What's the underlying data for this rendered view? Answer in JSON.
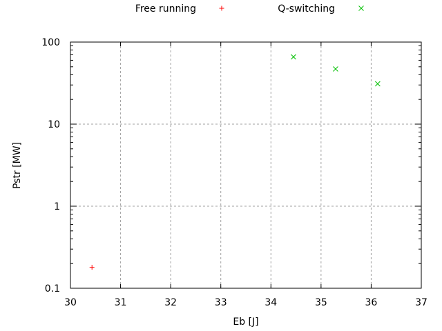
{
  "chart_data": {
    "type": "scatter",
    "title": "",
    "xlabel": "Eb [J]",
    "ylabel": "Pstr [MW]",
    "xlim": [
      30,
      37
    ],
    "ylim": [
      0.1,
      100
    ],
    "yscale": "log",
    "grid": true,
    "legend_position": "top",
    "x_ticks": [
      "30",
      "31",
      "32",
      "33",
      "34",
      "35",
      "36",
      "37"
    ],
    "y_ticks": [
      "0.1",
      "1",
      "10",
      "100"
    ],
    "series": [
      {
        "name": "Free running",
        "marker": "plus",
        "color": "#ff0000",
        "points": [
          {
            "x": 30.43,
            "y": 0.18
          }
        ]
      },
      {
        "name": "Q-switching",
        "marker": "cross",
        "color": "#00c000",
        "points": [
          {
            "x": 34.45,
            "y": 66
          },
          {
            "x": 35.29,
            "y": 47
          },
          {
            "x": 36.13,
            "y": 31
          }
        ]
      }
    ]
  }
}
